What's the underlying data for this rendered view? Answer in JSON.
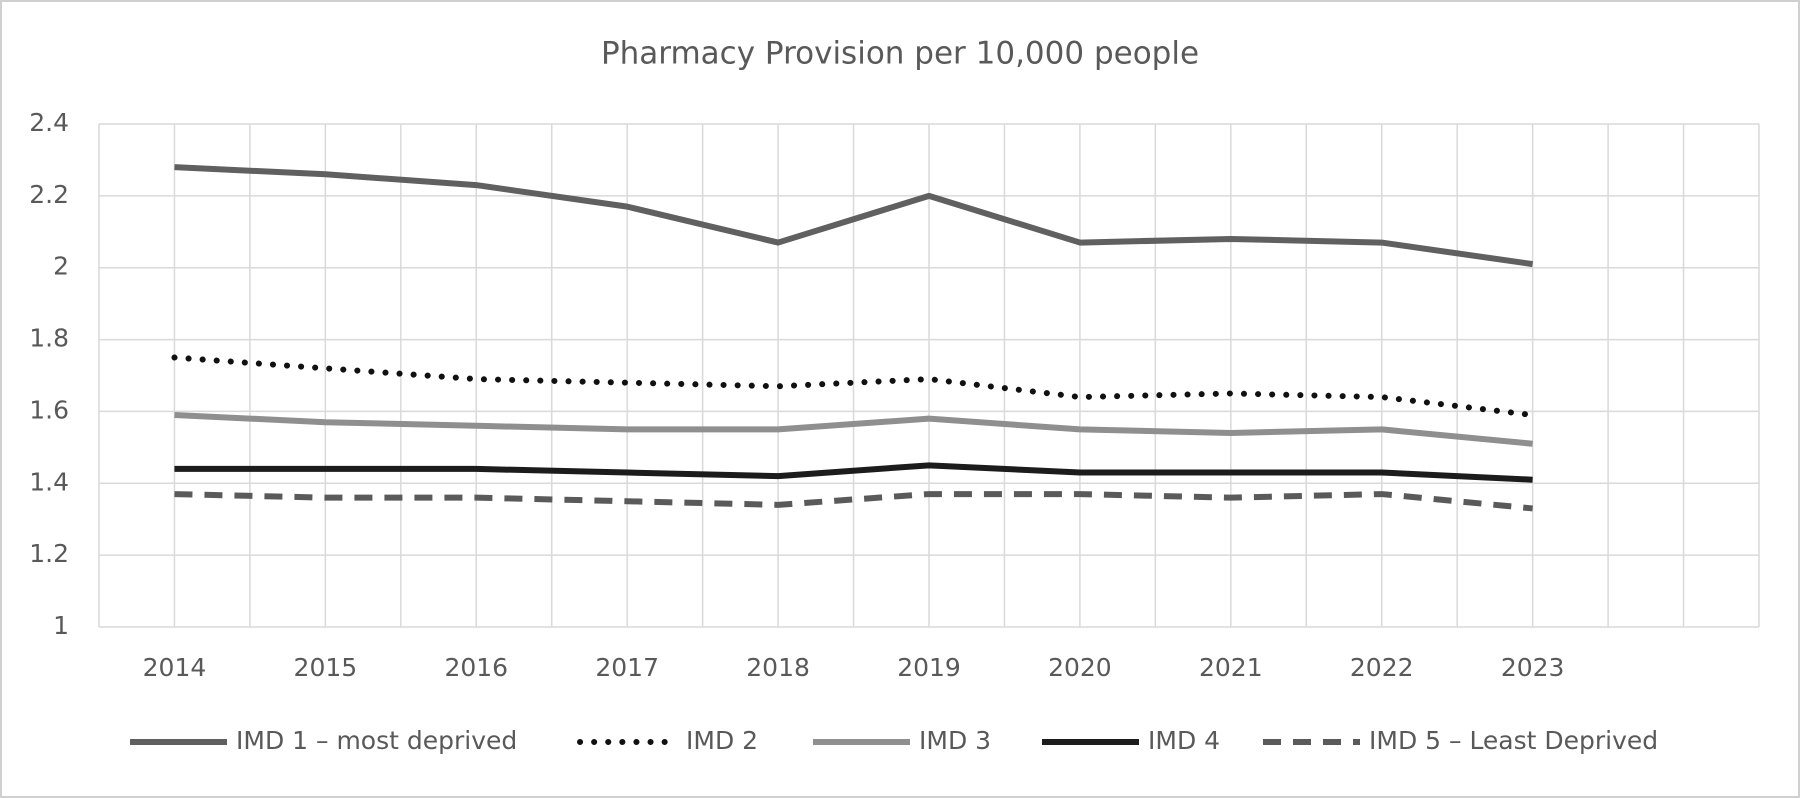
{
  "chart_data": {
    "type": "line",
    "title": "Pharmacy Provision per 10,000 people",
    "categories": [
      "2014",
      "2015",
      "2016",
      "2017",
      "2018",
      "2019",
      "2020",
      "2021",
      "2022",
      "2023",
      null
    ],
    "series": [
      {
        "name": "IMD 1 – most deprived",
        "color": "#606060",
        "style": "solid",
        "values": [
          2.28,
          2.26,
          2.23,
          2.17,
          2.07,
          2.2,
          2.07,
          2.08,
          2.07,
          2.01,
          null
        ]
      },
      {
        "name": "IMD 2",
        "color": "#111111",
        "style": "dotted",
        "values": [
          1.75,
          1.72,
          1.69,
          1.68,
          1.67,
          1.69,
          1.64,
          1.65,
          1.64,
          1.59,
          null
        ]
      },
      {
        "name": "IMD 3",
        "color": "#8f8f8f",
        "style": "solid",
        "values": [
          1.59,
          1.57,
          1.56,
          1.55,
          1.55,
          1.58,
          1.55,
          1.54,
          1.55,
          1.51,
          null
        ]
      },
      {
        "name": "IMD 4",
        "color": "#1c1c1c",
        "style": "solid",
        "values": [
          1.44,
          1.44,
          1.44,
          1.43,
          1.42,
          1.45,
          1.43,
          1.43,
          1.43,
          1.41,
          null
        ]
      },
      {
        "name": "IMD 5 – Least Deprived",
        "color": "#5a5a5a",
        "style": "dashed",
        "values": [
          1.37,
          1.36,
          1.36,
          1.35,
          1.34,
          1.37,
          1.37,
          1.36,
          1.37,
          1.33,
          null
        ]
      }
    ],
    "ylim": [
      1,
      2.4
    ],
    "yticks": [
      1,
      1.2,
      1.4,
      1.6,
      1.8,
      2,
      2.2,
      2.4
    ],
    "grid": true,
    "legend": "bottom"
  }
}
